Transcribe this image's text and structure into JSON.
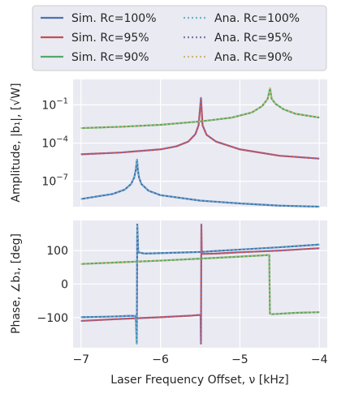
{
  "chart_data": [
    {
      "type": "line",
      "ylabel": "Amplitude, |b₁|, [√W]",
      "yscale": "log",
      "ylim": [
        1e-09,
        10
      ],
      "xlim": [
        -7.1,
        -3.9
      ],
      "yticks": [
        {
          "value": 0.1,
          "base": "10",
          "exp": "−1"
        },
        {
          "value": 0.0001,
          "base": "10",
          "exp": "−4"
        },
        {
          "value": 1e-07,
          "base": "10",
          "exp": "−7"
        }
      ],
      "grid": true,
      "series": [
        {
          "name": "Sim. Rc=100%",
          "color": "#4c72b0",
          "dash": "",
          "width": 2.2,
          "points": [
            [
              -7.0,
              4e-09
            ],
            [
              -6.6,
              1e-08
            ],
            [
              -6.45,
              2.2e-08
            ],
            [
              -6.37,
              6e-08
            ],
            [
              -6.33,
              2e-07
            ],
            [
              -6.31,
              8e-07
            ],
            [
              -6.295,
              5e-06
            ],
            [
              -6.285,
              8e-07
            ],
            [
              -6.27,
              2e-07
            ],
            [
              -6.24,
              6e-08
            ],
            [
              -6.15,
              1.8e-08
            ],
            [
              -6.0,
              8e-09
            ],
            [
              -5.5,
              3e-09
            ],
            [
              -5.0,
              1.8e-09
            ],
            [
              -4.5,
              1.2e-09
            ],
            [
              -4.0,
              8e-10
            ]
          ]
        },
        {
          "name": "Sim. Rc=95%",
          "color": "#c44e52",
          "dash": "",
          "width": 2.2,
          "points": [
            [
              -7.0,
              1.3e-05
            ],
            [
              -6.5,
              1.8e-05
            ],
            [
              -6.0,
              3.2e-05
            ],
            [
              -5.8,
              5.5e-05
            ],
            [
              -5.65,
              0.00013
            ],
            [
              -5.56,
              0.0005
            ],
            [
              -5.52,
              0.0025
            ],
            [
              -5.49,
              0.35
            ],
            [
              -5.47,
              0.0025
            ],
            [
              -5.42,
              0.00045
            ],
            [
              -5.3,
              0.00013
            ],
            [
              -5.0,
              3.2e-05
            ],
            [
              -4.5,
              1e-05
            ],
            [
              -4.0,
              6e-06
            ]
          ]
        },
        {
          "name": "Sim. Rc=90%",
          "color": "#55a868",
          "dash": "",
          "width": 2.2,
          "points": [
            [
              -7.0,
              0.0015
            ],
            [
              -6.5,
              0.0019
            ],
            [
              -6.0,
              0.0027
            ],
            [
              -5.5,
              0.005
            ],
            [
              -5.1,
              0.01
            ],
            [
              -4.85,
              0.025
            ],
            [
              -4.72,
              0.08
            ],
            [
              -4.65,
              0.3
            ],
            [
              -4.62,
              2.0
            ],
            [
              -4.6,
              0.3
            ],
            [
              -4.55,
              0.12
            ],
            [
              -4.45,
              0.045
            ],
            [
              -4.3,
              0.02
            ],
            [
              -4.0,
              0.01
            ]
          ]
        },
        {
          "name": "Ana. Rc=100%",
          "color": "#64b5cd",
          "dash": "2,3",
          "width": 2.0,
          "points": [
            [
              -7.0,
              4e-09
            ],
            [
              -6.6,
              1e-08
            ],
            [
              -6.45,
              2.2e-08
            ],
            [
              -6.37,
              6e-08
            ],
            [
              -6.33,
              2e-07
            ],
            [
              -6.31,
              8e-07
            ],
            [
              -6.295,
              5e-06
            ],
            [
              -6.285,
              8e-07
            ],
            [
              -6.27,
              2e-07
            ],
            [
              -6.24,
              6e-08
            ],
            [
              -6.15,
              1.8e-08
            ],
            [
              -6.0,
              8e-09
            ],
            [
              -5.5,
              3e-09
            ],
            [
              -5.0,
              1.8e-09
            ],
            [
              -4.5,
              1.2e-09
            ],
            [
              -4.0,
              8e-10
            ]
          ]
        },
        {
          "name": "Ana. Rc=95%",
          "color": "#8172b2",
          "dash": "2,3",
          "width": 2.0,
          "points": [
            [
              -7.0,
              1.3e-05
            ],
            [
              -6.5,
              1.8e-05
            ],
            [
              -6.0,
              3.2e-05
            ],
            [
              -5.8,
              5.5e-05
            ],
            [
              -5.65,
              0.00013
            ],
            [
              -5.56,
              0.0005
            ],
            [
              -5.52,
              0.0025
            ],
            [
              -5.49,
              0.35
            ],
            [
              -5.47,
              0.0025
            ],
            [
              -5.42,
              0.00045
            ],
            [
              -5.3,
              0.00013
            ],
            [
              -5.0,
              3.2e-05
            ],
            [
              -4.5,
              1e-05
            ],
            [
              -4.0,
              6e-06
            ]
          ]
        },
        {
          "name": "Ana. Rc=90%",
          "color": "#ccb974",
          "dash": "2,3",
          "width": 2.0,
          "points": [
            [
              -7.0,
              0.0015
            ],
            [
              -6.5,
              0.0019
            ],
            [
              -6.0,
              0.0027
            ],
            [
              -5.5,
              0.005
            ],
            [
              -5.1,
              0.01
            ],
            [
              -4.85,
              0.025
            ],
            [
              -4.72,
              0.08
            ],
            [
              -4.65,
              0.3
            ],
            [
              -4.62,
              2.0
            ],
            [
              -4.6,
              0.3
            ],
            [
              -4.55,
              0.12
            ],
            [
              -4.45,
              0.045
            ],
            [
              -4.3,
              0.02
            ],
            [
              -4.0,
              0.01
            ]
          ]
        }
      ]
    },
    {
      "type": "line",
      "ylabel": "Phase, ∠b₁, [deg]",
      "xlabel": "Laser Frequency Offset, ν [kHz]",
      "ylim": [
        -190,
        190
      ],
      "xlim": [
        -7.1,
        -3.9
      ],
      "xticks": [
        {
          "value": -7,
          "label": "−7"
        },
        {
          "value": -6,
          "label": "−6"
        },
        {
          "value": -5,
          "label": "−5"
        },
        {
          "value": -4,
          "label": "−4"
        }
      ],
      "yticks": [
        {
          "value": 100,
          "label": "100"
        },
        {
          "value": 0,
          "label": "0"
        },
        {
          "value": -100,
          "label": "−100"
        }
      ],
      "grid": true,
      "series": [
        {
          "name": "Sim. Rc=100%",
          "color": "#4c72b0",
          "dash": "",
          "width": 2.2,
          "points": [
            [
              -7.0,
              -99
            ],
            [
              -6.6,
              -97
            ],
            [
              -6.4,
              -95
            ],
            [
              -6.31,
              -95
            ],
            [
              -6.298,
              -178
            ],
            [
              -6.292,
              178
            ],
            [
              -6.28,
              95
            ],
            [
              -6.2,
              91
            ],
            [
              -5.5,
              96
            ],
            [
              -5.0,
              103
            ],
            [
              -4.5,
              110
            ],
            [
              -4.0,
              118
            ]
          ]
        },
        {
          "name": "Sim. Rc=95%",
          "color": "#c44e52",
          "dash": "",
          "width": 2.2,
          "points": [
            [
              -7.0,
              -110
            ],
            [
              -6.5,
              -104
            ],
            [
              -6.0,
              -99
            ],
            [
              -5.6,
              -94
            ],
            [
              -5.495,
              -92
            ],
            [
              -5.49,
              -178
            ],
            [
              -5.485,
              178
            ],
            [
              -5.48,
              90
            ],
            [
              -5.3,
              91
            ],
            [
              -5.0,
              95
            ],
            [
              -4.5,
              100
            ],
            [
              -4.0,
              107
            ]
          ]
        },
        {
          "name": "Sim. Rc=90%",
          "color": "#55a868",
          "dash": "",
          "width": 2.2,
          "points": [
            [
              -7.0,
              60
            ],
            [
              -6.5,
              65
            ],
            [
              -6.0,
              70
            ],
            [
              -5.5,
              76
            ],
            [
              -5.0,
              82
            ],
            [
              -4.7,
              86
            ],
            [
              -4.63,
              87
            ],
            [
              -4.622,
              -88
            ],
            [
              -4.6,
              -90
            ],
            [
              -4.3,
              -86
            ],
            [
              -4.0,
              -84
            ]
          ]
        },
        {
          "name": "Ana. Rc=100%",
          "color": "#64b5cd",
          "dash": "2,3",
          "width": 2.0,
          "points": [
            [
              -7.0,
              -99
            ],
            [
              -6.6,
              -97
            ],
            [
              -6.4,
              -95
            ],
            [
              -6.31,
              -95
            ],
            [
              -6.298,
              -178
            ],
            [
              -6.292,
              178
            ],
            [
              -6.28,
              95
            ],
            [
              -6.2,
              91
            ],
            [
              -5.5,
              96
            ],
            [
              -5.0,
              103
            ],
            [
              -4.5,
              110
            ],
            [
              -4.0,
              118
            ]
          ]
        },
        {
          "name": "Ana. Rc=95%",
          "color": "#8172b2",
          "dash": "2,3",
          "width": 2.0,
          "points": [
            [
              -7.0,
              -110
            ],
            [
              -6.5,
              -104
            ],
            [
              -6.0,
              -99
            ],
            [
              -5.6,
              -94
            ],
            [
              -5.495,
              -92
            ],
            [
              -5.49,
              -178
            ],
            [
              -5.485,
              178
            ],
            [
              -5.48,
              90
            ],
            [
              -5.3,
              91
            ],
            [
              -5.0,
              95
            ],
            [
              -4.5,
              100
            ],
            [
              -4.0,
              107
            ]
          ]
        },
        {
          "name": "Ana. Rc=90%",
          "color": "#ccb974",
          "dash": "2,3",
          "width": 2.0,
          "points": [
            [
              -7.0,
              60
            ],
            [
              -6.5,
              65
            ],
            [
              -6.0,
              70
            ],
            [
              -5.5,
              76
            ],
            [
              -5.0,
              82
            ],
            [
              -4.7,
              86
            ],
            [
              -4.63,
              87
            ],
            [
              -4.622,
              -88
            ],
            [
              -4.6,
              -90
            ],
            [
              -4.3,
              -86
            ],
            [
              -4.0,
              -84
            ]
          ]
        }
      ]
    }
  ],
  "legend": {
    "position": "top",
    "columns": 2,
    "entries": [
      {
        "label": "Sim. Rc=100%",
        "color": "#4c72b0",
        "dash": ""
      },
      {
        "label": "Ana. Rc=100%",
        "color": "#64b5cd",
        "dash": "2,3"
      },
      {
        "label": "Sim. Rc=95%",
        "color": "#c44e52",
        "dash": ""
      },
      {
        "label": "Ana. Rc=95%",
        "color": "#8172b2",
        "dash": "2,3"
      },
      {
        "label": "Sim. Rc=90%",
        "color": "#55a868",
        "dash": ""
      },
      {
        "label": "Ana. Rc=90%",
        "color": "#ccb974",
        "dash": "2,3"
      }
    ]
  },
  "colors": {
    "axes_bg": "#eaeaf2",
    "grid": "#ffffff",
    "text": "#262626"
  }
}
